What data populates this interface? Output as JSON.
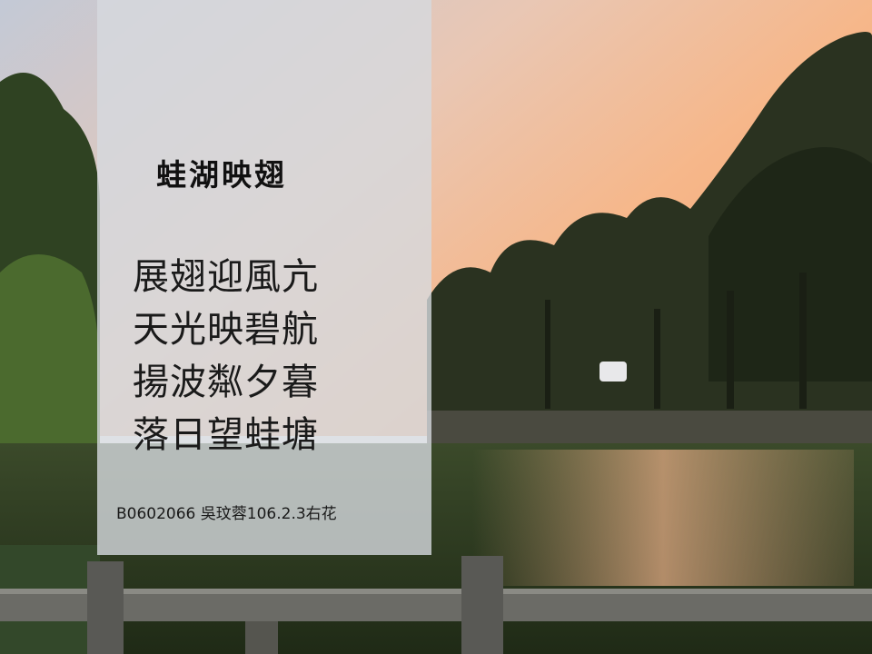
{
  "title": "蛙湖映翅",
  "poem": {
    "lines": [
      "展翅迎風亢",
      "天光映碧航",
      "揚波粼夕暮",
      "落日望蛙塘"
    ]
  },
  "credit": "B0602066 吳玟蓉106.2.3右花",
  "colors": {
    "sky_warm": "#f2b98a",
    "sky_cool": "#c9ccd6",
    "water": "#2e3a22",
    "foliage": "#2b3a1f",
    "panel": "#d6d9de"
  }
}
